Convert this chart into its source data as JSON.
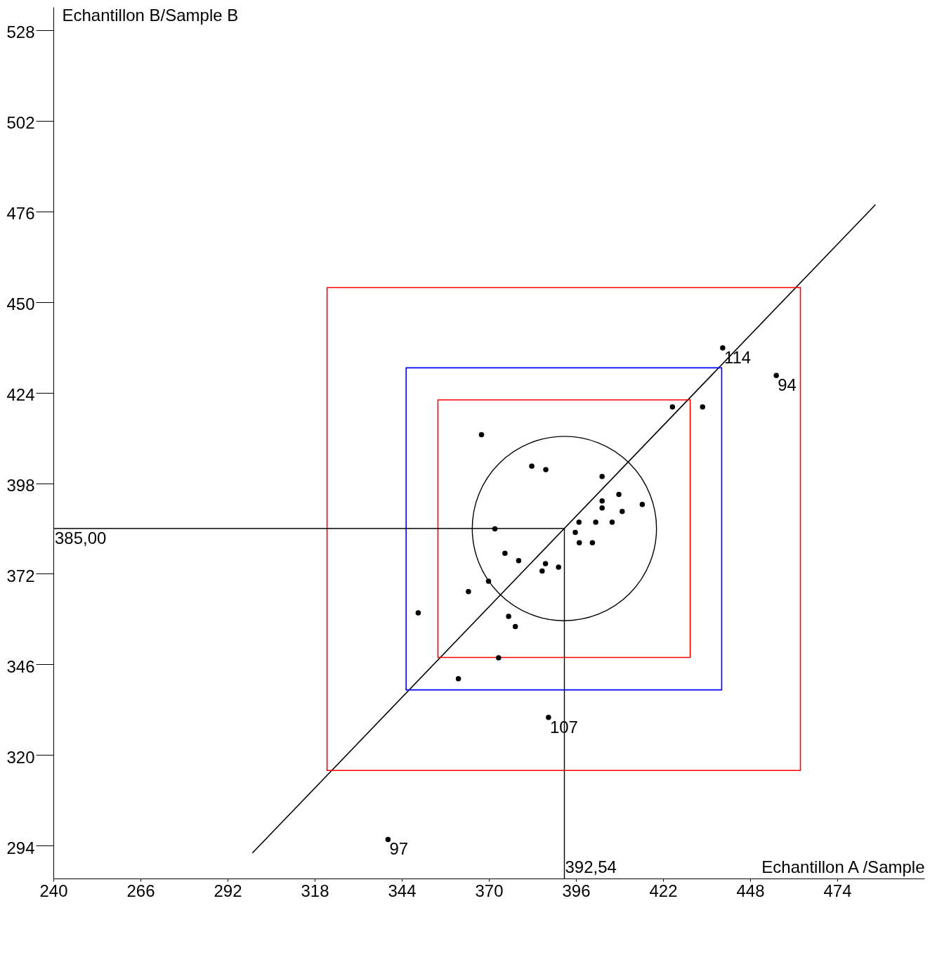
{
  "chart_data": {
    "type": "scatter",
    "xlabel": "Echantillon A /Sample",
    "ylabel": "Echantillon B/Sample B",
    "xlim": [
      240,
      500
    ],
    "ylim": [
      284.6,
      534.6
    ],
    "xticks": [
      240,
      266,
      292,
      318,
      344,
      370,
      396,
      422,
      448,
      474
    ],
    "yticks": [
      294,
      320,
      346,
      372,
      398,
      424,
      450,
      476,
      502,
      528
    ],
    "grid": false,
    "series": [
      {
        "type": "line",
        "color": "#000000",
        "x": [
          299.5,
          485.3
        ],
        "values": [
          292.0,
          477.8
        ]
      },
      {
        "type": "line",
        "color": "#ff0000",
        "x": [
          321.7,
          321.7,
          463.0
        ],
        "values": [
          315.6,
          454.1,
          454.1
        ]
      },
      {
        "type": "line",
        "color": "#ff0000",
        "x": [
          321.7,
          463.0,
          463.0
        ],
        "values": [
          315.6,
          315.6,
          454.1
        ]
      },
      {
        "type": "line",
        "color": "#0000ff",
        "x": [
          345.3,
          345.3,
          439.5
        ],
        "values": [
          338.7,
          431.1,
          431.1
        ]
      },
      {
        "type": "line",
        "color": "#0000ff",
        "x": [
          345.3,
          439.5,
          439.5
        ],
        "values": [
          338.7,
          338.7,
          431.1
        ]
      },
      {
        "type": "line",
        "color": "#ff0000",
        "x": [
          354.8,
          354.8,
          430.1
        ],
        "values": [
          348.0,
          421.9,
          421.9
        ]
      },
      {
        "type": "line",
        "color": "#ff0000",
        "x": [
          354.8,
          430.1,
          430.1
        ],
        "values": [
          348.0,
          348.0,
          421.9
        ]
      },
      {
        "color": "#000000",
        "marker": "circle",
        "x": [
          424.8,
          433.8,
          367.8,
          382.8,
          387.0,
          403.8,
          408.8,
          403.8,
          403.8,
          415.8,
          409.8,
          396.9,
          401.9,
          406.8,
          395.8,
          397.0,
          400.9,
          371.8,
          374.8,
          378.9,
          386.9,
          385.9,
          390.8,
          369.9,
          363.9,
          348.9,
          375.9,
          377.9,
          372.9,
          360.9,
          439.8,
          455.8,
          387.8,
          339.9
        ],
        "values": [
          419.9,
          419.9,
          411.9,
          402.9,
          401.9,
          399.9,
          394.8,
          392.9,
          390.9,
          391.9,
          389.9,
          386.8,
          386.8,
          386.8,
          383.9,
          380.9,
          380.9,
          384.9,
          377.9,
          375.8,
          374.9,
          372.8,
          373.9,
          369.9,
          366.9,
          360.8,
          359.8,
          356.9,
          347.9,
          341.9,
          436.8,
          428.9,
          330.8,
          295.8
        ]
      }
    ],
    "ref_lines": [
      {
        "axis": "x",
        "value": 392.54,
        "label": "392,54"
      },
      {
        "axis": "y",
        "value": 385.0,
        "label": "385,00"
      }
    ],
    "annotations": [
      {
        "text": "114",
        "x": 439.8,
        "y": 436.8
      },
      {
        "text": "94",
        "x": 455.8,
        "y": 428.9
      },
      {
        "text": "107",
        "x": 387.8,
        "y": 330.8
      },
      {
        "text": "97",
        "x": 339.9,
        "y": 295.8
      }
    ]
  }
}
